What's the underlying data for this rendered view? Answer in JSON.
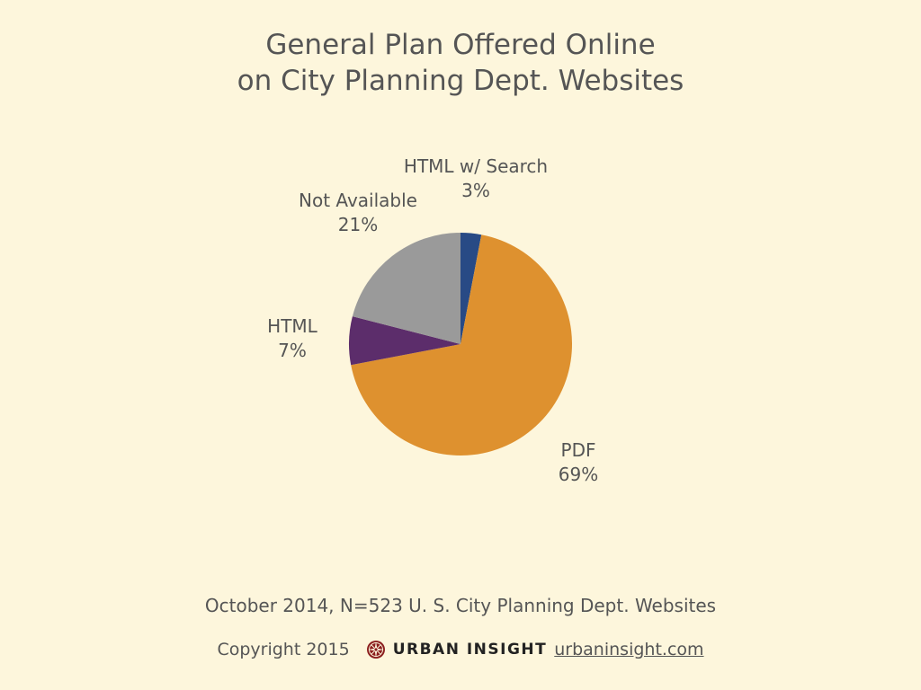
{
  "chart_data": {
    "type": "pie",
    "title": [
      "General Plan Offered Online",
      "on City Planning Dept. Websites"
    ],
    "slices": [
      {
        "label": "HTML w/ Search",
        "value": 3,
        "value_label": "3%",
        "color": "#284a85"
      },
      {
        "label": "PDF",
        "value": 69,
        "value_label": "69%",
        "color": "#de912f"
      },
      {
        "label": "HTML",
        "value": 7,
        "value_label": "7%",
        "color": "#5c2d6b"
      },
      {
        "label": "Not Available",
        "value": 21,
        "value_label": "21%",
        "color": "#9a9a9a"
      }
    ]
  },
  "footer": {
    "note": "October 2014, N=523 U. S. City Planning Dept. Websites",
    "copyright": "Copyright 2015",
    "brand": "URBAN INSIGHT",
    "url": "urbaninsight.com",
    "logo_icon": "compass-rose-icon"
  }
}
